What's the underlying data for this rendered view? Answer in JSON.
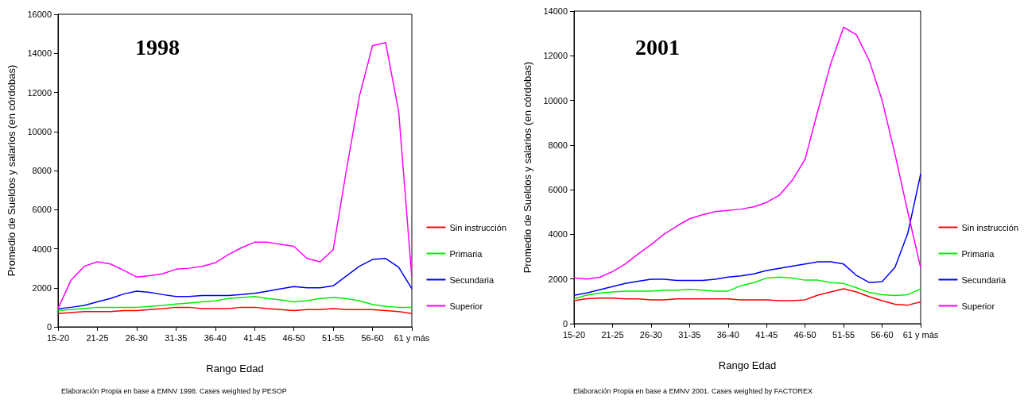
{
  "chart_data": [
    {
      "type": "line",
      "title": "1998",
      "xlabel": "Rango Edad",
      "ylabel": "Promedio de Sueldos y salarios (en córdobas)",
      "categories": [
        "15-20",
        null,
        null,
        "21-25",
        null,
        null,
        "26-30",
        null,
        null,
        "31-35",
        null,
        null,
        "36-40",
        null,
        null,
        "41-45",
        null,
        null,
        "46-50",
        null,
        null,
        "51-55",
        null,
        null,
        "56-60",
        null,
        null,
        "61 y más"
      ],
      "series": [
        {
          "name": "Sin instrucción",
          "color": "#ff0000",
          "values": [
            680,
            730,
            780,
            780,
            780,
            830,
            830,
            880,
            930,
            1000,
            1000,
            930,
            930,
            930,
            1000,
            1000,
            930,
            880,
            830,
            880,
            880,
            930,
            880,
            880,
            880,
            830,
            780,
            680
          ]
        },
        {
          "name": "Primaria",
          "color": "#00ee00",
          "values": [
            830,
            880,
            940,
            1000,
            1000,
            1000,
            1000,
            1050,
            1100,
            1170,
            1220,
            1280,
            1330,
            1450,
            1500,
            1550,
            1450,
            1380,
            1280,
            1340,
            1450,
            1500,
            1450,
            1330,
            1150,
            1050,
            1000,
            1000
          ]
        },
        {
          "name": "Secundaria",
          "color": "#0000ff",
          "values": [
            920,
            1000,
            1100,
            1280,
            1450,
            1680,
            1830,
            1770,
            1650,
            1550,
            1550,
            1600,
            1600,
            1600,
            1650,
            1720,
            1830,
            1950,
            2060,
            2000,
            2000,
            2100,
            2600,
            3100,
            3450,
            3500,
            3050,
            1950
          ]
        },
        {
          "name": "Superior",
          "color": "#ff00ff",
          "values": [
            940,
            2400,
            3100,
            3330,
            3220,
            2900,
            2550,
            2620,
            2720,
            2950,
            3000,
            3100,
            3280,
            3700,
            4050,
            4330,
            4330,
            4220,
            4120,
            3500,
            3330,
            3950,
            8000,
            11800,
            14400,
            14550,
            11000,
            2500
          ]
        }
      ],
      "ylim": [
        0,
        16000
      ],
      "yticks": [
        0,
        2000,
        4000,
        6000,
        8000,
        10000,
        12000,
        14000,
        16000
      ],
      "grid": false,
      "legend": "right",
      "marker": "none",
      "line_style": "solid",
      "annotations": [
        "Elaboración Propia en base a EMNV 1998. Cases weighted by PESOP"
      ]
    },
    {
      "type": "line",
      "title": "2001",
      "xlabel": "Rango Edad",
      "ylabel": "Promedio de Sueldos y salarios (en córdobas)",
      "categories": [
        "15-20",
        null,
        null,
        "21-25",
        null,
        null,
        "26-30",
        null,
        null,
        "31-35",
        null,
        null,
        "36-40",
        null,
        null,
        "41-45",
        null,
        null,
        "46-50",
        null,
        null,
        "51-55",
        null,
        null,
        "56-60",
        null,
        null,
        "61 y más"
      ],
      "series": [
        {
          "name": "Sin instrucción",
          "color": "#ff0000",
          "values": [
            1030,
            1120,
            1150,
            1150,
            1110,
            1110,
            1070,
            1070,
            1110,
            1110,
            1110,
            1110,
            1110,
            1070,
            1070,
            1070,
            1030,
            1030,
            1070,
            1280,
            1420,
            1560,
            1420,
            1210,
            1030,
            870,
            830,
            980
          ]
        },
        {
          "name": "Primaria",
          "color": "#00ee00",
          "values": [
            1110,
            1280,
            1370,
            1420,
            1460,
            1460,
            1460,
            1500,
            1500,
            1540,
            1500,
            1460,
            1460,
            1700,
            1840,
            2040,
            2090,
            2040,
            1950,
            1950,
            1840,
            1800,
            1610,
            1400,
            1300,
            1260,
            1300,
            1560
          ]
        },
        {
          "name": "Secundaria",
          "color": "#0000ff",
          "values": [
            1270,
            1380,
            1520,
            1660,
            1800,
            1900,
            1990,
            1990,
            1940,
            1940,
            1940,
            1990,
            2090,
            2140,
            2230,
            2380,
            2480,
            2580,
            2670,
            2770,
            2770,
            2670,
            2160,
            1840,
            1880,
            2520,
            4050,
            6700
          ]
        },
        {
          "name": "Superior",
          "color": "#ff00ff",
          "values": [
            2050,
            2000,
            2080,
            2330,
            2680,
            3120,
            3540,
            4000,
            4370,
            4700,
            4880,
            5020,
            5070,
            5130,
            5230,
            5430,
            5760,
            6420,
            7370,
            9550,
            11650,
            13280,
            12940,
            11780,
            10000,
            7600,
            5000,
            2500
          ]
        }
      ],
      "ylim": [
        0,
        14000
      ],
      "yticks": [
        0,
        2000,
        4000,
        6000,
        8000,
        10000,
        12000,
        14000
      ],
      "grid": false,
      "legend": "right",
      "marker": "none",
      "line_style": "solid",
      "annotations": [
        "Elaboración Propia en base a EMNV 2001. Cases weighted by FACTOREX"
      ]
    }
  ]
}
